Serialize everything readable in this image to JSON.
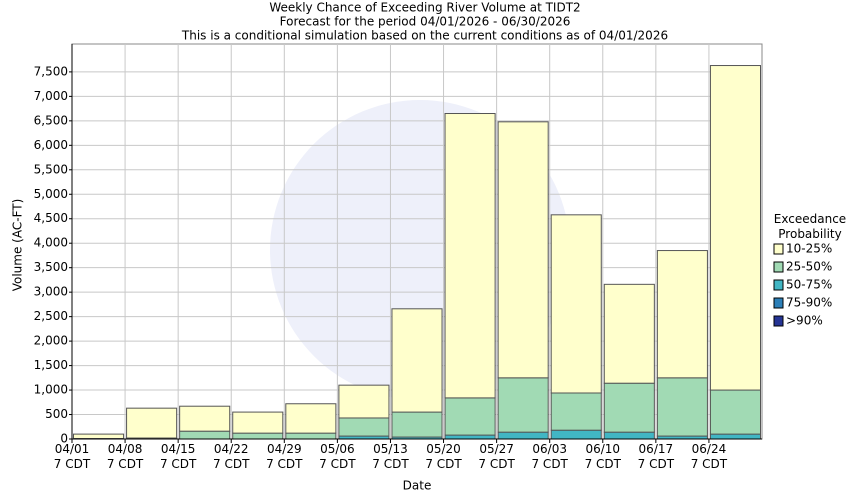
{
  "chart_data": {
    "type": "stacked_bar",
    "title": "Weekly Chance of Exceeding River Volume at TIDT2",
    "subtitle": "Forecast for the period 04/01/2026 - 06/30/2026",
    "note": "This is a conditional simulation based on the current conditions as of 04/01/2026",
    "x_label": "Date",
    "y_label": "Volume (AC-FT)",
    "legend_title": "Exceedance Probability",
    "categories": [
      "04/01 7 CDT",
      "04/08 7 CDT",
      "04/15 7 CDT",
      "04/22 7 CDT",
      "04/29 7 CDT",
      "05/06 7 CDT",
      "05/13 7 CDT",
      "05/20 7 CDT",
      "05/27 7 CDT",
      "06/03 7 CDT",
      "06/10 7 CDT",
      "06/17 7 CDT",
      "06/24 7 CDT"
    ],
    "series": [
      {
        "name": ">90%",
        "color": "#253494",
        "values": [
          0,
          0,
          0,
          0,
          0,
          0,
          0,
          0,
          0,
          0,
          0,
          0,
          0
        ]
      },
      {
        "name": "75-90%",
        "color": "#2c7fb8",
        "values": [
          0,
          0,
          0,
          0,
          0,
          0,
          0,
          0,
          0,
          0,
          0,
          0,
          0
        ]
      },
      {
        "name": "50-75%",
        "color": "#41b6c4",
        "values": [
          0,
          0,
          0,
          0,
          0,
          60,
          40,
          80,
          140,
          180,
          140,
          60,
          100
        ]
      },
      {
        "name": "25-50%",
        "color": "#a1dab4",
        "values": [
          10,
          20,
          160,
          120,
          120,
          370,
          510,
          760,
          1110,
          760,
          1000,
          1190,
          900
        ]
      },
      {
        "name": "10-25%",
        "color": "#ffffcc",
        "values": [
          90,
          610,
          510,
          430,
          600,
          670,
          2110,
          5810,
          5230,
          3640,
          2020,
          2600,
          6630
        ]
      }
    ],
    "ylim": [
      0,
      8070
    ],
    "yticks": [
      0,
      500,
      {
        "value": 1000,
        "label": "1,000"
      },
      {
        "value": 1500,
        "label": "1,500"
      },
      {
        "value": 2000,
        "label": "2,000"
      },
      {
        "value": 2500,
        "label": "2,500"
      },
      {
        "value": 3000,
        "label": "3,000"
      },
      {
        "value": 3500,
        "label": "3,500"
      },
      {
        "value": 4000,
        "label": "4,000"
      },
      {
        "value": 4500,
        "label": "4,500"
      },
      {
        "value": 5000,
        "label": "5,000"
      },
      {
        "value": 5500,
        "label": "5,500"
      },
      {
        "value": 6000,
        "label": "6,000"
      },
      {
        "value": 6500,
        "label": "6,500"
      },
      {
        "value": 7000,
        "label": "7,000"
      },
      {
        "value": 7500,
        "label": "7,500"
      }
    ],
    "grid": true
  }
}
